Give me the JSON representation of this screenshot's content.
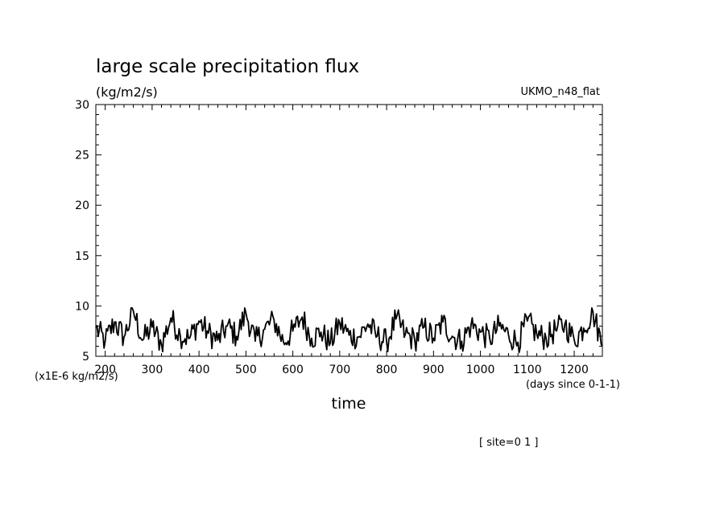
{
  "chart_data": {
    "type": "line",
    "title": "large scale precipitation flux",
    "units": "(kg/m2/s)",
    "dataset_label": "UKMO_n48_flat",
    "xlabel": "time",
    "x_units": "(days since 0-1-1)",
    "y_units": "(x1E-6 kg/m2/s)",
    "footer": "[ site=0 1 ]",
    "xlim": [
      180,
      1260
    ],
    "ylim": [
      5,
      30
    ],
    "x_ticks": [
      200,
      300,
      400,
      500,
      600,
      700,
      800,
      900,
      1000,
      1100,
      1200
    ],
    "y_ticks": [
      5,
      10,
      15,
      20,
      25,
      30
    ],
    "grid": false,
    "line_color": "#000000",
    "series": [
      {
        "x": [
          180,
          200,
          220,
          240,
          260,
          280,
          300,
          320,
          340,
          360,
          380,
          400,
          420,
          440,
          460,
          480,
          500,
          520,
          540,
          560,
          580,
          600,
          620,
          640,
          660,
          680,
          700,
          720,
          740,
          760,
          780,
          800,
          820,
          840,
          860,
          880,
          900,
          920,
          940,
          960,
          980,
          1000,
          1020,
          1040,
          1060,
          1080,
          1100,
          1120,
          1140,
          1160,
          1180,
          1200,
          1220,
          1240,
          1260
        ],
        "values": [
          7.8,
          6.5,
          8.4,
          6.9,
          9.5,
          6.6,
          7.9,
          6.2,
          8.8,
          7.1,
          6.8,
          8.5,
          7.3,
          6.6,
          8.0,
          7.0,
          9.3,
          6.5,
          7.7,
          8.6,
          6.4,
          7.5,
          8.9,
          6.8,
          7.4,
          6.3,
          8.3,
          7.1,
          6.9,
          8.2,
          7.0,
          6.4,
          8.7,
          7.2,
          6.6,
          7.9,
          6.8,
          8.4,
          7.0,
          6.5,
          8.1,
          7.4,
          6.7,
          8.0,
          7.1,
          6.4,
          8.5,
          7.2,
          6.8,
          7.6,
          8.2,
          6.6,
          7.8,
          9.4,
          6.0
        ]
      }
    ]
  }
}
